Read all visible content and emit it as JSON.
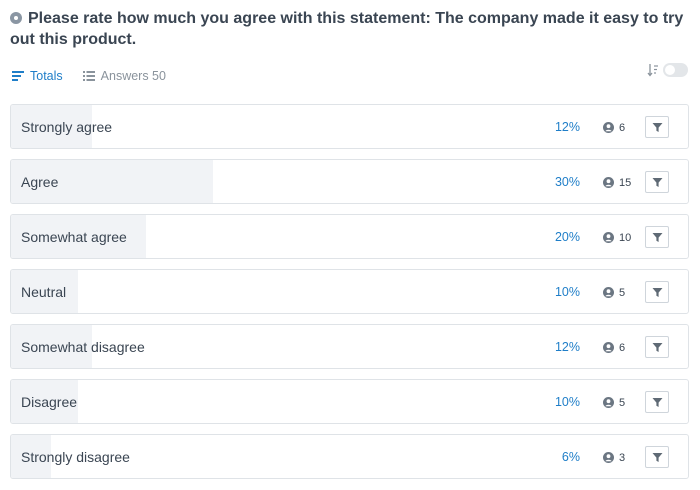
{
  "question": {
    "icon": "circle-dot-icon",
    "text": "Please rate how much you agree with this statement: The company made it easy to try out this product."
  },
  "tabs": [
    {
      "label": "Totals",
      "icon": "bars-icon",
      "active": true
    },
    {
      "label": "Answers 50",
      "icon": "list-icon",
      "active": false
    }
  ],
  "sort": {
    "icon": "sort-icon",
    "toggle_on": false
  },
  "colors": {
    "accent": "#1f7ec8",
    "bar_fill": "#f1f3f6",
    "border": "#dfe3e7"
  },
  "rows": [
    {
      "label": "Strongly agree",
      "percent": "12%",
      "count": "6",
      "share": 0.12
    },
    {
      "label": "Agree",
      "percent": "30%",
      "count": "15",
      "share": 0.3
    },
    {
      "label": "Somewhat agree",
      "percent": "20%",
      "count": "10",
      "share": 0.2
    },
    {
      "label": "Neutral",
      "percent": "10%",
      "count": "5",
      "share": 0.1
    },
    {
      "label": "Somewhat disagree",
      "percent": "12%",
      "count": "6",
      "share": 0.12
    },
    {
      "label": "Disagree",
      "percent": "10%",
      "count": "5",
      "share": 0.1
    },
    {
      "label": "Strongly disagree",
      "percent": "6%",
      "count": "3",
      "share": 0.06
    }
  ]
}
